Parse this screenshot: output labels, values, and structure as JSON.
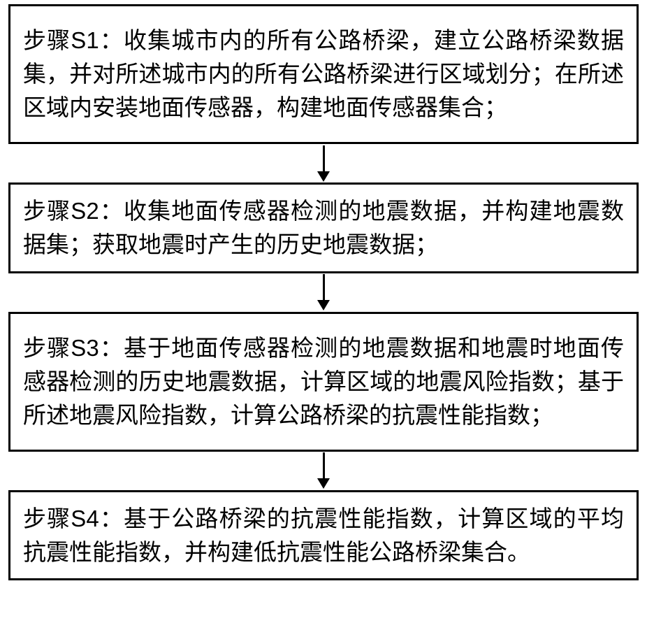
{
  "flowchart": {
    "type": "flowchart",
    "direction": "vertical",
    "background_color": "#ffffff",
    "border_color": "#000000",
    "border_width": 3,
    "text_color": "#000000",
    "font_size": 33,
    "arrow_color": "#000000",
    "nodes": [
      {
        "id": "s1",
        "text": "步骤S1：收集城市内的所有公路桥梁，建立公路桥梁数据集，并对所述城市内的所有公路桥梁进行区域划分；在所述区域内安装地面传感器，构建地面传感器集合；"
      },
      {
        "id": "s2",
        "text": "步骤S2：收集地面传感器检测的地震数据，并构建地震数据集；获取地震时产生的历史地震数据；"
      },
      {
        "id": "s3",
        "text": "步骤S3：基于地面传感器检测的地震数据和地震时地面传感器检测的历史地震数据，计算区域的地震风险指数；基于所述地震风险指数，计算公路桥梁的抗震性能指数；"
      },
      {
        "id": "s4",
        "text": "步骤S4：基于公路桥梁的抗震性能指数，计算区域的平均抗震性能指数，并构建低抗震性能公路桥梁集合。"
      }
    ],
    "edges": [
      {
        "from": "s1",
        "to": "s2"
      },
      {
        "from": "s2",
        "to": "s3"
      },
      {
        "from": "s3",
        "to": "s4"
      }
    ]
  }
}
